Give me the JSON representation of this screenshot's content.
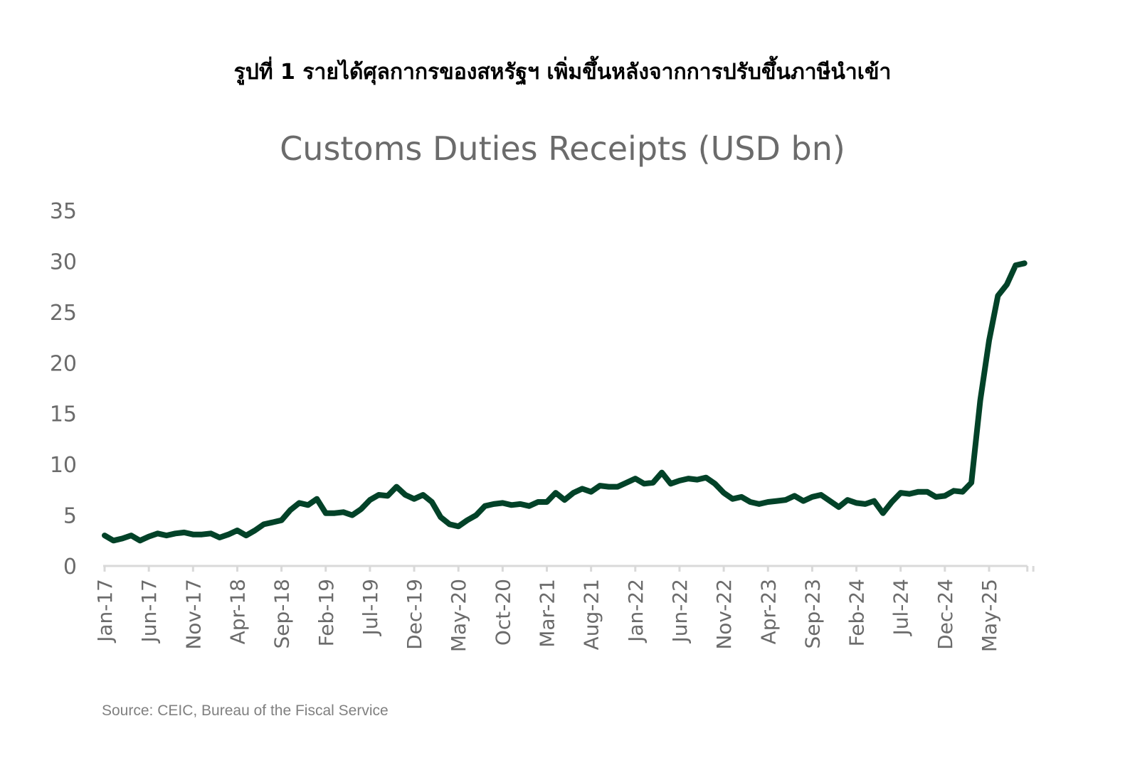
{
  "figure_title": "รูปที่ 1 รายได้ศุลกากรของสหรัฐฯ เพิ่มขึ้นหลังจากการปรับขึ้นภาษีนำเข้า",
  "source": "Source: CEIC, Bureau of the Fiscal Service",
  "colors": {
    "line": "#024228",
    "axis": "#d9d9d9",
    "text": "#6b6b6b"
  },
  "chart_data": {
    "type": "line",
    "title": "Customs Duties Receipts (USD bn)",
    "xlabel": "",
    "ylabel": "",
    "ylim": [
      0,
      35
    ],
    "yticks": [
      0,
      5,
      10,
      15,
      20,
      25,
      30,
      35
    ],
    "grid": false,
    "start_month": "Jan-17",
    "xtick_labels": [
      "Jan-17",
      "Jun-17",
      "Nov-17",
      "Apr-18",
      "Sep-18",
      "Feb-19",
      "Jul-19",
      "Dec-19",
      "May-20",
      "Oct-20",
      "Mar-21",
      "Aug-21",
      "Jan-22",
      "Jun-22",
      "Nov-22",
      "Apr-23",
      "Sep-23",
      "Feb-24",
      "Jul-24",
      "Dec-24",
      "May-25"
    ],
    "xtick_step_months": 5,
    "series": [
      {
        "name": "Customs Duties Receipts",
        "values": [
          3.0,
          2.5,
          2.7,
          3.0,
          2.5,
          2.9,
          3.2,
          3.0,
          3.2,
          3.3,
          3.1,
          3.1,
          3.2,
          2.8,
          3.1,
          3.5,
          3.0,
          3.5,
          4.1,
          4.3,
          4.5,
          5.5,
          6.2,
          6.0,
          6.6,
          5.2,
          5.2,
          5.3,
          5.0,
          5.6,
          6.5,
          7.0,
          6.9,
          7.8,
          7.0,
          6.6,
          7.0,
          6.3,
          4.8,
          4.1,
          3.9,
          4.5,
          5.0,
          5.9,
          6.1,
          6.2,
          6.0,
          6.1,
          5.9,
          6.3,
          6.3,
          7.2,
          6.5,
          7.2,
          7.6,
          7.3,
          7.9,
          7.8,
          7.8,
          8.2,
          8.6,
          8.1,
          8.2,
          9.2,
          8.1,
          8.4,
          8.6,
          8.5,
          8.7,
          8.1,
          7.2,
          6.6,
          6.8,
          6.3,
          6.1,
          6.3,
          6.4,
          6.5,
          6.9,
          6.4,
          6.8,
          7.0,
          6.4,
          5.8,
          6.5,
          6.2,
          6.1,
          6.4,
          5.2,
          6.3,
          7.2,
          7.1,
          7.3,
          7.3,
          6.8,
          6.9,
          7.4,
          7.3,
          8.2,
          16.3,
          22.2,
          26.6,
          27.7,
          29.6,
          29.8
        ]
      }
    ]
  }
}
